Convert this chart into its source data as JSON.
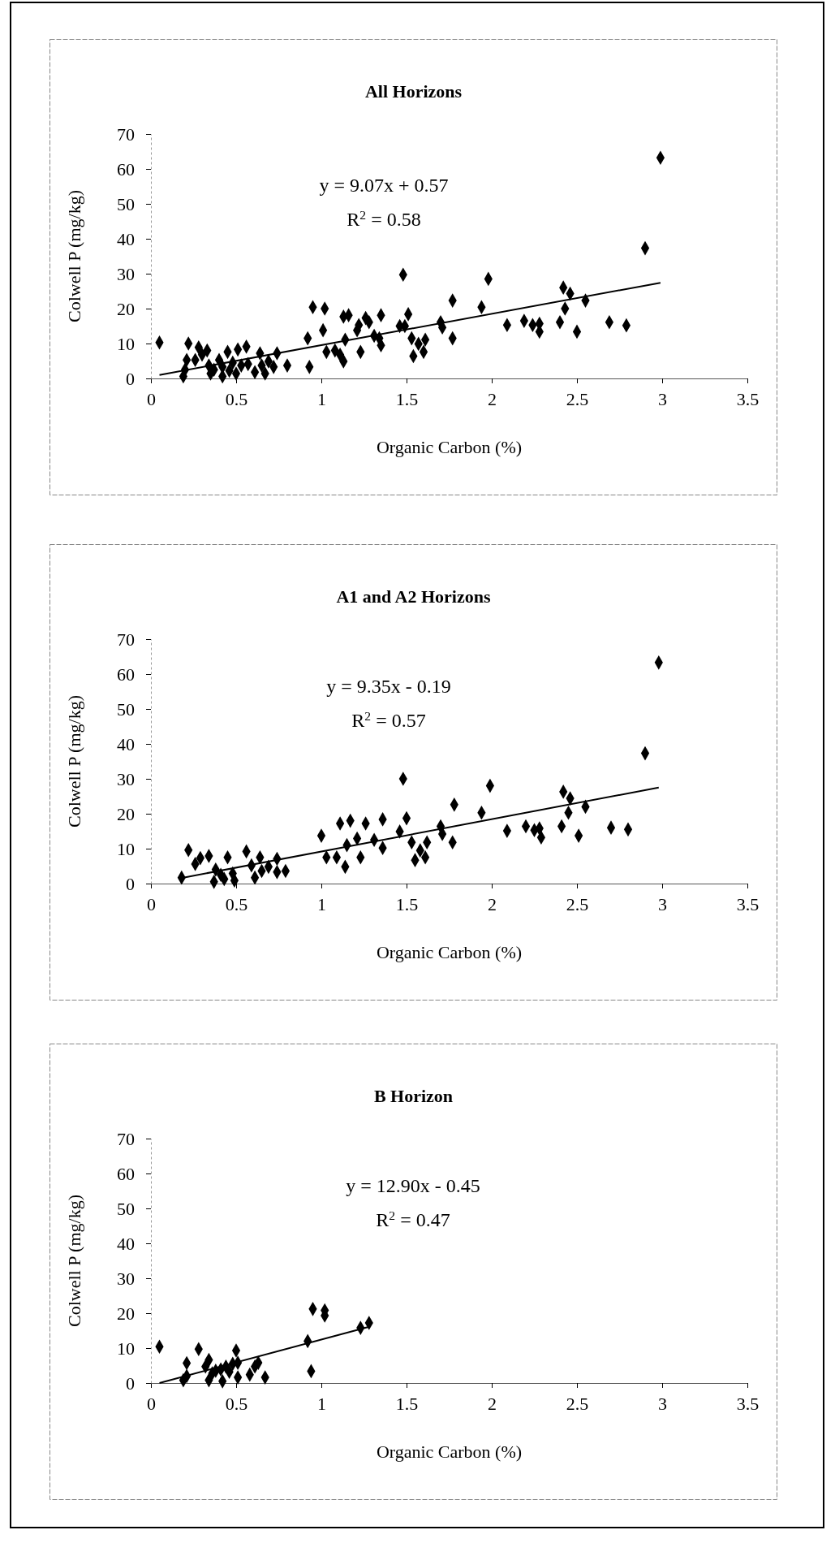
{
  "chart_data": [
    {
      "type": "scatter",
      "title": "All Horizons",
      "xlabel": "Organic Carbon (%)",
      "ylabel": "Colwell P (mg/kg)",
      "xlim": [
        0,
        3.5
      ],
      "xticks": [
        0,
        0.5,
        1,
        1.5,
        2,
        2.5,
        3,
        3.5
      ],
      "ylim": [
        0,
        70
      ],
      "yticks": [
        0,
        10,
        20,
        30,
        40,
        50,
        60,
        70
      ],
      "annotations": [
        "y = 9.07x + 0.57",
        "R$^{2}$ = 0.58"
      ],
      "series": [
        {
          "marker": "diamond",
          "color": "#000000",
          "x": [
            0.05,
            0.19,
            0.2,
            0.21,
            0.22,
            0.26,
            0.28,
            0.3,
            0.33,
            0.34,
            0.35,
            0.37,
            0.4,
            0.42,
            0.42,
            0.45,
            0.46,
            0.48,
            0.5,
            0.51,
            0.53,
            0.56,
            0.57,
            0.61,
            0.64,
            0.65,
            0.67,
            0.69,
            0.72,
            0.74,
            0.8,
            0.93,
            0.92,
            0.95,
            1.02,
            1.01,
            1.03,
            1.08,
            1.11,
            1.13,
            1.14,
            1.13,
            1.16,
            1.21,
            1.22,
            1.23,
            1.26,
            1.28,
            1.31,
            1.34,
            1.35,
            1.35,
            1.46,
            1.48,
            1.49,
            1.51,
            1.53,
            1.54,
            1.57,
            1.6,
            1.61,
            1.7,
            1.71,
            1.77,
            1.77,
            1.94,
            1.98,
            2.09,
            2.19,
            2.24,
            2.28,
            2.28,
            2.4,
            2.42,
            2.46,
            2.43,
            2.5,
            2.55,
            2.69,
            2.79,
            2.9,
            2.99
          ],
          "values": [
            10.3,
            0.6,
            2.5,
            5.3,
            10,
            5.3,
            8.9,
            6.8,
            8,
            3.7,
            1.4,
            2.5,
            5.3,
            0.6,
            3.3,
            7.6,
            2.2,
            4.5,
            1.4,
            8.3,
            3.7,
            9.1,
            4.1,
            1.8,
            7.2,
            3.7,
            1.4,
            4.9,
            3.3,
            7.2,
            3.7,
            3.3,
            11.5,
            20.4,
            20,
            13.8,
            7.6,
            8,
            6.8,
            4.9,
            11.1,
            17.7,
            18.1,
            13.8,
            15.3,
            7.6,
            17.3,
            16.1,
            12.2,
            11.5,
            18.1,
            9.5,
            15,
            29.7,
            15,
            18.4,
            11.5,
            6.4,
            9.9,
            7.6,
            11.1,
            16.1,
            14.6,
            11.5,
            22.3,
            20.4,
            28.5,
            15.3,
            16.5,
            15.3,
            15.7,
            13.4,
            16.1,
            26,
            24.3,
            20,
            13.4,
            22.3,
            16.1,
            15.2,
            37.3,
            63.2
          ]
        },
        {
          "type": "line",
          "color": "#000000",
          "line_style": "solid",
          "marker": "none",
          "x": [
            0.05,
            2.99
          ],
          "values": [
            1.0,
            27.4
          ]
        }
      ]
    },
    {
      "type": "scatter",
      "title": "A1 and A2 Horizons",
      "xlabel": "Organic Carbon (%)",
      "ylabel": "Colwell P (mg/kg)",
      "xlim": [
        0,
        3.5
      ],
      "xticks": [
        0,
        0.5,
        1,
        1.5,
        2,
        2.5,
        3,
        3.5
      ],
      "ylim": [
        0,
        70
      ],
      "yticks": [
        0,
        10,
        20,
        30,
        40,
        50,
        60,
        70
      ],
      "annotations": [
        "y = 9.35x - 0.19",
        "R$^{2}$ = 0.57"
      ],
      "series": [
        {
          "marker": "diamond",
          "color": "#000000",
          "x": [
            0.18,
            0.22,
            0.26,
            0.29,
            0.34,
            0.37,
            0.38,
            0.41,
            0.45,
            0.43,
            0.48,
            0.49,
            0.56,
            0.59,
            0.61,
            0.64,
            0.65,
            0.69,
            0.74,
            0.74,
            0.79,
            1.0,
            1.03,
            1.09,
            1.11,
            1.14,
            1.15,
            1.17,
            1.21,
            1.23,
            1.26,
            1.31,
            1.36,
            1.36,
            1.46,
            1.48,
            1.5,
            1.53,
            1.55,
            1.58,
            1.61,
            1.62,
            1.7,
            1.71,
            1.77,
            1.78,
            1.94,
            1.99,
            2.09,
            2.2,
            2.25,
            2.28,
            2.29,
            2.41,
            2.42,
            2.46,
            2.45,
            2.51,
            2.55,
            2.7,
            2.8,
            2.9,
            2.98
          ],
          "values": [
            1.7,
            9.6,
            5.6,
            7.3,
            7.9,
            0.5,
            4,
            2.5,
            7.5,
            1.3,
            2.9,
            0.9,
            9.2,
            5.2,
            1.7,
            7.5,
            3.6,
            4.8,
            7.1,
            3.3,
            3.6,
            13.7,
            7.5,
            7.5,
            17.2,
            4.8,
            11,
            18,
            12.9,
            7.5,
            17.2,
            12.5,
            18.4,
            10.2,
            14.9,
            30,
            18.7,
            11.8,
            6.7,
            9.5,
            7.5,
            11.8,
            16.4,
            14.2,
            11.8,
            22.6,
            20.3,
            28,
            15.1,
            16.4,
            15.3,
            15.8,
            13.2,
            16.4,
            26.3,
            24.4,
            20.3,
            13.7,
            22,
            16,
            15.5,
            37.3,
            63.3
          ]
        },
        {
          "type": "line",
          "color": "#000000",
          "line_style": "solid",
          "marker": "none",
          "x": [
            0.19,
            2.98
          ],
          "values": [
            1.7,
            27.5
          ]
        }
      ]
    },
    {
      "type": "scatter",
      "title": "B Horizon",
      "xlabel": "Organic Carbon (%)",
      "ylabel": "Colwell P (mg/kg)",
      "xlim": [
        0,
        3.5
      ],
      "xticks": [
        0,
        0.5,
        1,
        1.5,
        2,
        2.5,
        3,
        3.5
      ],
      "ylim": [
        0,
        70
      ],
      "yticks": [
        0,
        10,
        20,
        30,
        40,
        50,
        60,
        70
      ],
      "annotations": [
        "y = 12.90x - 0.45",
        "R$^{2}$ = 0.47"
      ],
      "series": [
        {
          "marker": "diamond",
          "color": "#000000",
          "x": [
            0.05,
            0.19,
            0.21,
            0.21,
            0.28,
            0.32,
            0.34,
            0.34,
            0.36,
            0.38,
            0.41,
            0.42,
            0.44,
            0.46,
            0.48,
            0.5,
            0.51,
            0.51,
            0.58,
            0.61,
            0.63,
            0.67,
            0.92,
            0.94,
            0.95,
            1.02,
            1.02,
            1.23,
            1.28
          ],
          "values": [
            10.4,
            0.8,
            2,
            5.7,
            9.7,
            4.7,
            6.6,
            0.8,
            2.8,
            3.5,
            3.9,
            0.5,
            4.7,
            3.2,
            5.5,
            9.3,
            5.8,
            1.6,
            2.4,
            4.7,
            5.8,
            1.6,
            12,
            3.4,
            21.2,
            20.8,
            19.3,
            15.8,
            17.2
          ]
        },
        {
          "type": "line",
          "color": "#000000",
          "line_style": "solid",
          "marker": "none",
          "x": [
            0.05,
            1.28
          ],
          "values": [
            0,
            16.1
          ]
        }
      ]
    }
  ]
}
